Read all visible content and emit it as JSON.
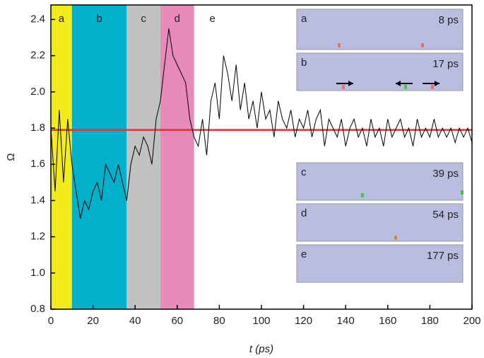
{
  "chart_data": {
    "type": "line",
    "xlabel": "t (ps)",
    "ylabel": "Ω",
    "xlim": [
      0,
      200
    ],
    "ylim": [
      0.8,
      2.48
    ],
    "xticks": [
      0,
      20,
      40,
      60,
      80,
      100,
      120,
      140,
      160,
      180,
      200
    ],
    "yticks": [
      0.8,
      {
        "value": 1.0,
        "label": "1.0"
      },
      1.2,
      1.4,
      1.6,
      1.8,
      {
        "value": 2.0,
        "label": "2.0"
      },
      2.2,
      2.4
    ],
    "bands": [
      {
        "label": "a",
        "start": 0,
        "end": 10,
        "color": "#f4ec1a"
      },
      {
        "label": "b",
        "start": 10,
        "end": 36,
        "color": "#00b1c9"
      },
      {
        "label": "c",
        "start": 36,
        "end": 52,
        "color": "#c1c1c1"
      },
      {
        "label": "d",
        "start": 52,
        "end": 68,
        "color": "#e88ab9"
      },
      {
        "label": "e",
        "start": 68,
        "end": null,
        "color": null
      }
    ],
    "reference_line": {
      "value": 1.79,
      "color": "#e8302c"
    },
    "series": [
      {
        "color": "#000000",
        "x": [
          0,
          2,
          4,
          6,
          8,
          10,
          12,
          14,
          16,
          18,
          20,
          22,
          24,
          26,
          28,
          30,
          32,
          34,
          36,
          38,
          40,
          42,
          44,
          46,
          48,
          50,
          52,
          54,
          56,
          58,
          60,
          62,
          64,
          66,
          68,
          70,
          72,
          74,
          76,
          78,
          80,
          82,
          84,
          86,
          88,
          90,
          92,
          94,
          96,
          98,
          100,
          102,
          104,
          106,
          108,
          110,
          112,
          114,
          116,
          118,
          120,
          122,
          124,
          126,
          128,
          130,
          132,
          134,
          136,
          138,
          140,
          142,
          144,
          146,
          148,
          150,
          152,
          154,
          156,
          158,
          160,
          162,
          164,
          166,
          168,
          170,
          172,
          174,
          176,
          178,
          180,
          182,
          184,
          186,
          188,
          190,
          192,
          194,
          196,
          198,
          200
        ],
        "values": [
          1.8,
          1.45,
          1.9,
          1.5,
          1.85,
          1.6,
          1.45,
          1.3,
          1.4,
          1.35,
          1.45,
          1.5,
          1.4,
          1.6,
          1.55,
          1.5,
          1.6,
          1.5,
          1.4,
          1.6,
          1.7,
          1.65,
          1.75,
          1.7,
          1.6,
          1.85,
          1.95,
          2.15,
          2.35,
          2.2,
          2.15,
          2.1,
          2.05,
          1.85,
          1.75,
          1.7,
          1.85,
          1.65,
          1.95,
          2.05,
          1.85,
          2.2,
          2.1,
          1.95,
          2.15,
          1.9,
          2.05,
          1.85,
          1.95,
          1.8,
          2.0,
          1.85,
          1.9,
          1.75,
          1.95,
          1.85,
          1.8,
          1.9,
          1.75,
          1.85,
          1.8,
          1.9,
          1.75,
          1.85,
          1.9,
          1.7,
          1.85,
          1.8,
          1.75,
          1.85,
          1.7,
          1.8,
          1.85,
          1.75,
          1.8,
          1.7,
          1.85,
          1.75,
          1.8,
          1.7,
          1.85,
          1.75,
          1.8,
          1.85,
          1.75,
          1.8,
          1.7,
          1.85,
          1.75,
          1.8,
          1.75,
          1.85,
          1.75,
          1.8,
          1.75,
          1.8,
          1.72,
          1.8,
          1.75,
          1.8,
          1.72
        ]
      }
    ],
    "insets": [
      {
        "label": "a",
        "time": "8 ps"
      },
      {
        "label": "b",
        "time": "17 ps"
      },
      {
        "label": "c",
        "time": "39 ps"
      },
      {
        "label": "d",
        "time": "54 ps"
      },
      {
        "label": "e",
        "time": "177 ps"
      }
    ]
  }
}
